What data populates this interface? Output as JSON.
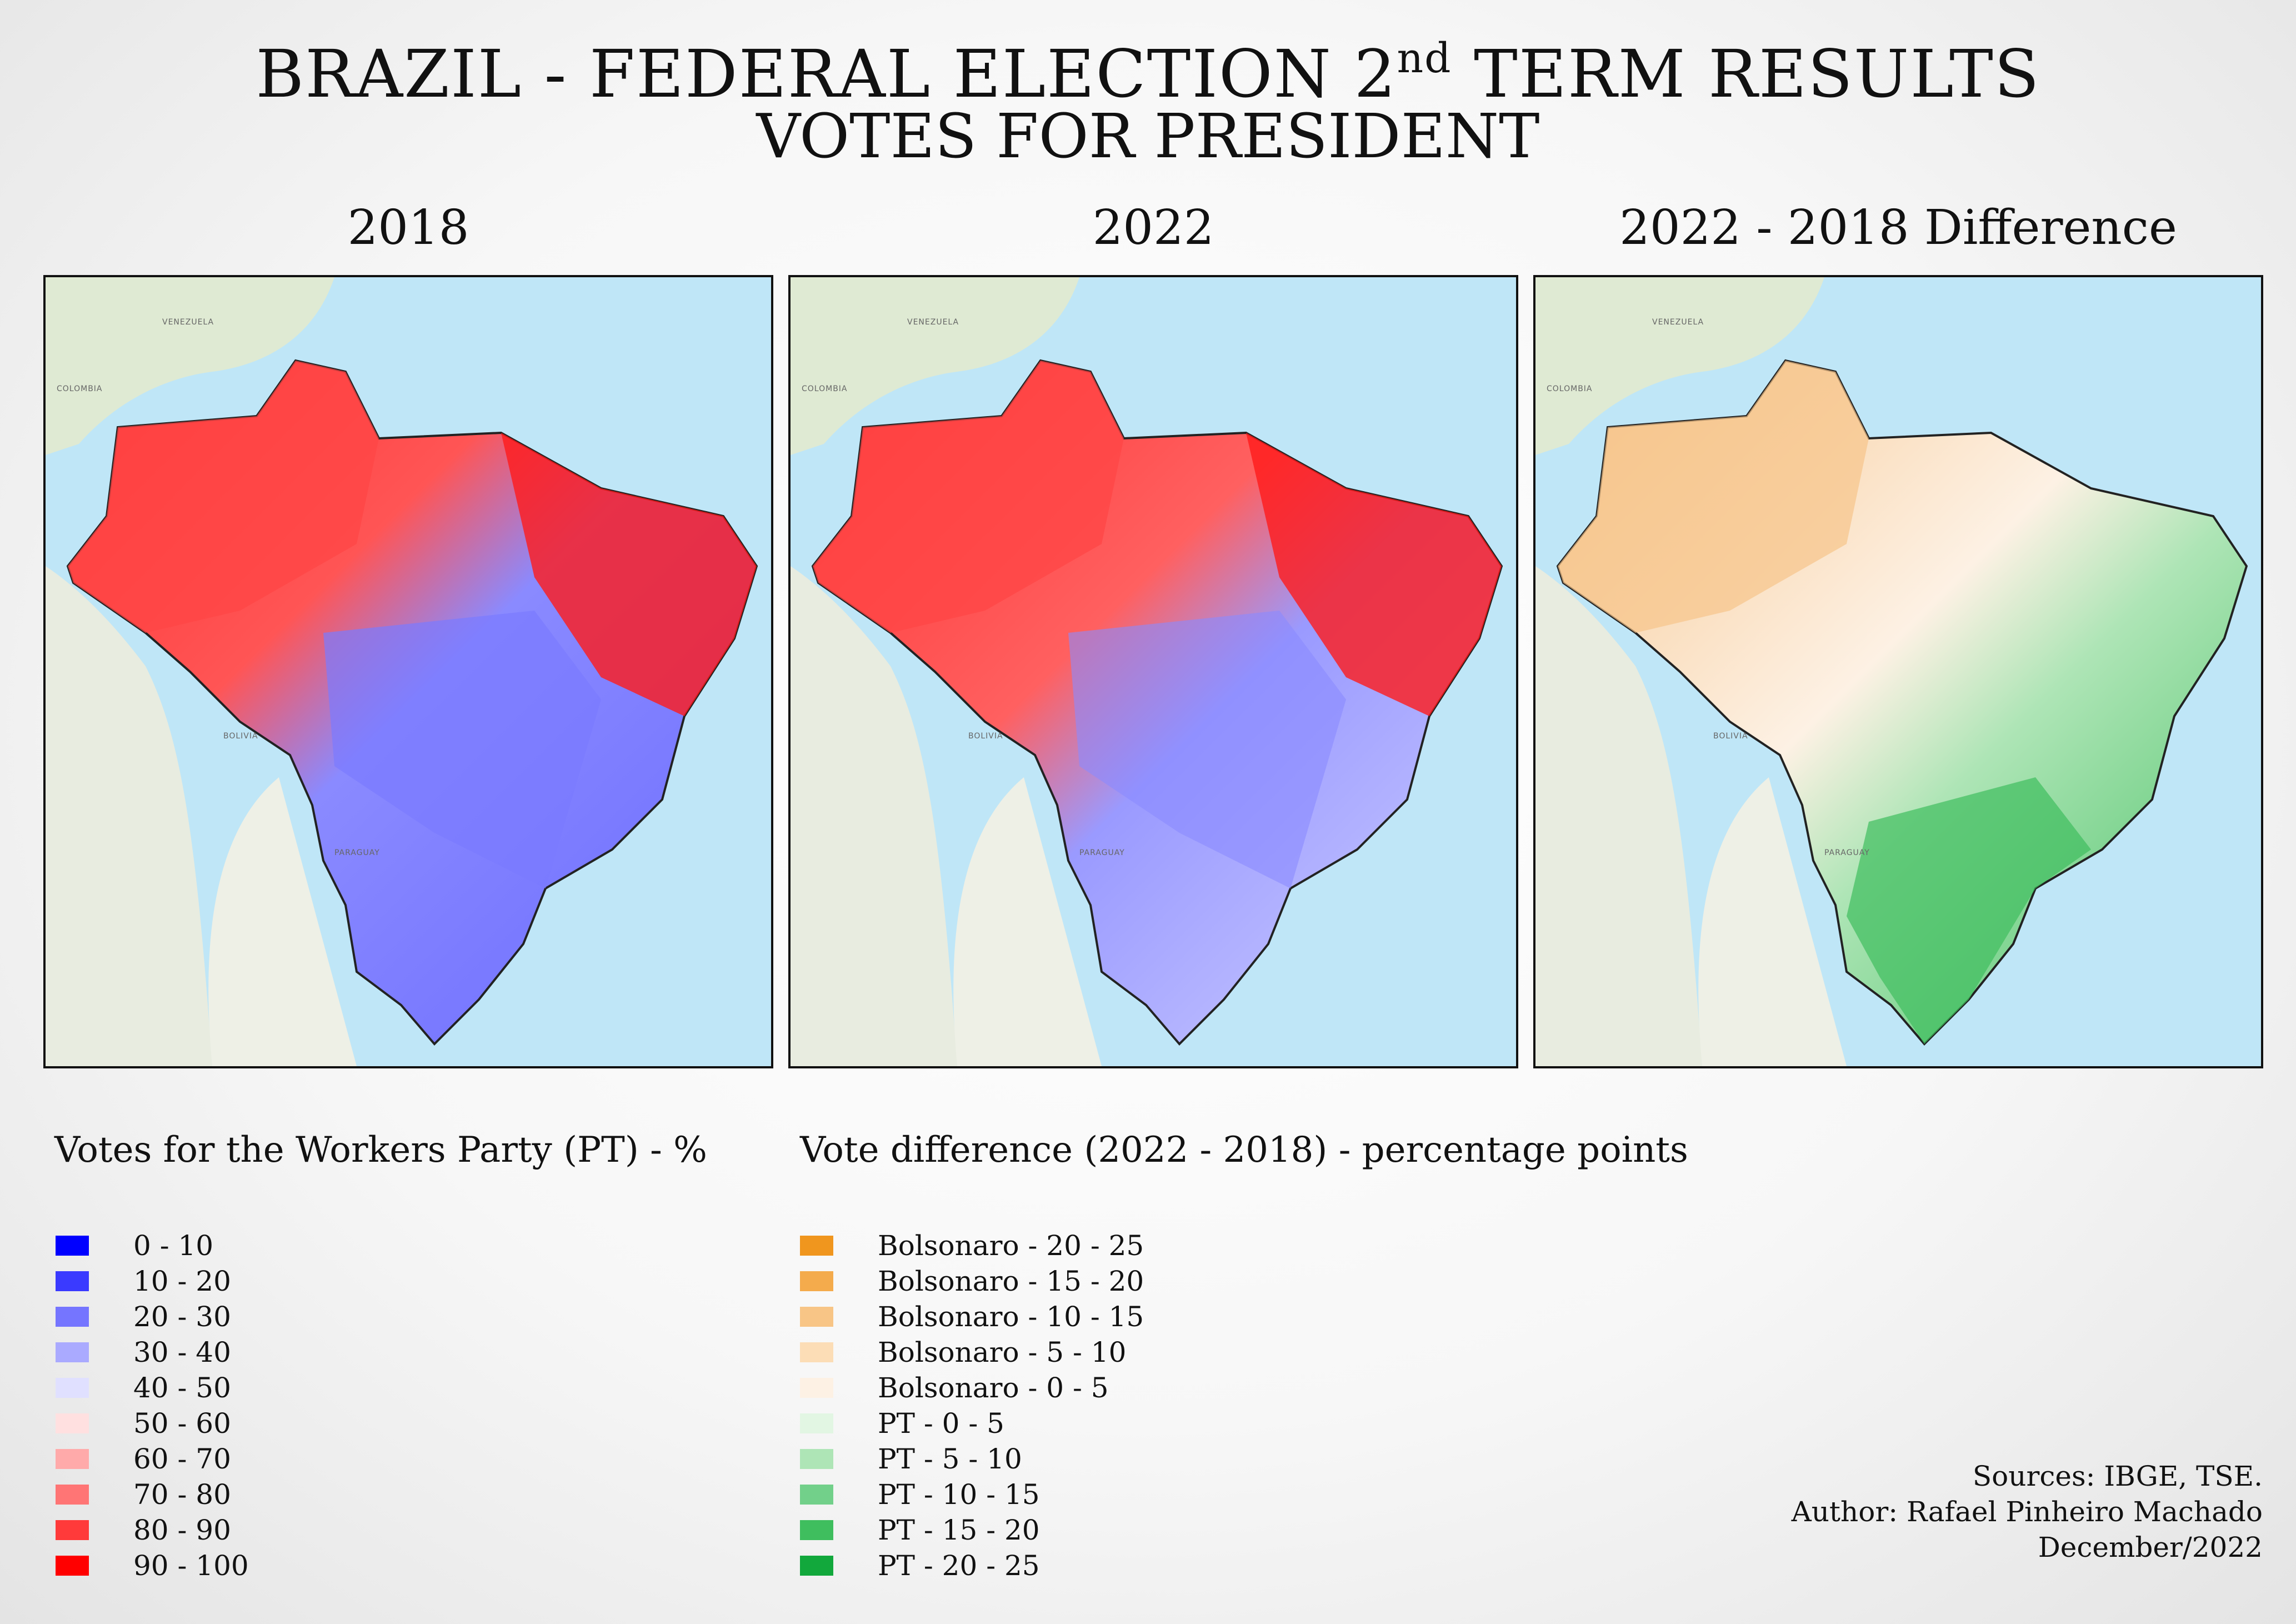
{
  "title_main": "BRAZIL - FEDERAL ELECTION 2",
  "title_sup": "nd",
  "title_rest": " TERM RESULTS",
  "subtitle": "VOTES FOR PRESIDENT",
  "panels": [
    {
      "title": "2018"
    },
    {
      "title": "2022"
    },
    {
      "title": "2022 - 2018 Difference"
    }
  ],
  "map_labels": [
    "VENEZUELA",
    "COLOMBIA",
    "BOLIVIA",
    "PARAGUAY"
  ],
  "legend_pt": {
    "title": "Votes for the Workers Party (PT) - %",
    "items": [
      {
        "label": "0 - 10",
        "color": "#0000ff"
      },
      {
        "label": "10 - 20",
        "color": "#3a3aff"
      },
      {
        "label": "20 - 30",
        "color": "#7575ff"
      },
      {
        "label": "30 - 40",
        "color": "#aaaaff"
      },
      {
        "label": "40 - 50",
        "color": "#e0e0ff"
      },
      {
        "label": "50 - 60",
        "color": "#ffe0e0"
      },
      {
        "label": "60 - 70",
        "color": "#ffaaaa"
      },
      {
        "label": "70 - 80",
        "color": "#ff7575"
      },
      {
        "label": "80 - 90",
        "color": "#ff3a3a"
      },
      {
        "label": "90 - 100",
        "color": "#ff0000"
      }
    ]
  },
  "legend_diff": {
    "title": "Vote difference (2022 - 2018) - percentage points",
    "items": [
      {
        "label": "Bolsonaro - 20 - 25",
        "color": "#f0961e"
      },
      {
        "label": "Bolsonaro - 15 - 20",
        "color": "#f4ab4c"
      },
      {
        "label": "Bolsonaro - 10 - 15",
        "color": "#f8c586"
      },
      {
        "label": "Bolsonaro -  5 - 10",
        "color": "#fcddb6"
      },
      {
        "label": "Bolsonaro -  0 - 5",
        "color": "#fdf1e4"
      },
      {
        "label": "PT -  0 - 5",
        "color": "#e2f6e3"
      },
      {
        "label": "PT -  5 - 10",
        "color": "#aee5b6"
      },
      {
        "label": "PT - 10 - 15",
        "color": "#72d08a"
      },
      {
        "label": "PT - 15 - 20",
        "color": "#3fbe5e"
      },
      {
        "label": "PT - 20 - 25",
        "color": "#12a83c"
      }
    ]
  },
  "credits": {
    "sources": "Sources: IBGE, TSE.",
    "author": "Author: Rafael Pinheiro Machado",
    "date": "December/2022"
  }
}
